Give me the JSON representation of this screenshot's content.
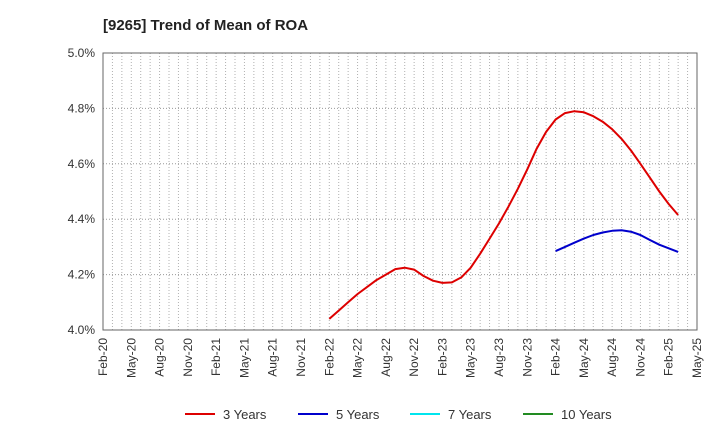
{
  "chart_data": {
    "type": "line",
    "title": "[9265]  Trend of Mean of ROA",
    "xlabel": "",
    "ylabel": "",
    "ylim": [
      4.0,
      5.0
    ],
    "y_ticks": [
      "4.0%",
      "4.2%",
      "4.4%",
      "4.6%",
      "4.8%",
      "5.0%"
    ],
    "y_tick_values": [
      4.0,
      4.2,
      4.4,
      4.6,
      4.8,
      5.0
    ],
    "x_range": [
      "2020-02",
      "2025-05"
    ],
    "x_ticks": [
      "Feb-20",
      "May-20",
      "Aug-20",
      "Nov-20",
      "Feb-21",
      "May-21",
      "Aug-21",
      "Nov-21",
      "Feb-22",
      "May-22",
      "Aug-22",
      "Nov-22",
      "Feb-23",
      "May-23",
      "Aug-23",
      "Nov-23",
      "Feb-24",
      "May-24",
      "Aug-24",
      "Nov-24",
      "Feb-25",
      "May-25"
    ],
    "grid": true,
    "legend_position": "bottom",
    "series": [
      {
        "name": "3 Years",
        "color": "#dd0000",
        "points": [
          [
            "2022-02",
            4.04
          ],
          [
            "2022-03",
            4.07
          ],
          [
            "2022-04",
            4.1
          ],
          [
            "2022-05",
            4.13
          ],
          [
            "2022-06",
            4.155
          ],
          [
            "2022-07",
            4.18
          ],
          [
            "2022-08",
            4.2
          ],
          [
            "2022-09",
            4.22
          ],
          [
            "2022-10",
            4.225
          ],
          [
            "2022-11",
            4.218
          ],
          [
            "2022-12",
            4.195
          ],
          [
            "2023-01",
            4.178
          ],
          [
            "2023-02",
            4.17
          ],
          [
            "2023-03",
            4.172
          ],
          [
            "2023-04",
            4.19
          ],
          [
            "2023-05",
            4.225
          ],
          [
            "2023-06",
            4.275
          ],
          [
            "2023-07",
            4.33
          ],
          [
            "2023-08",
            4.385
          ],
          [
            "2023-09",
            4.445
          ],
          [
            "2023-10",
            4.51
          ],
          [
            "2023-11",
            4.58
          ],
          [
            "2023-12",
            4.655
          ],
          [
            "2024-01",
            4.715
          ],
          [
            "2024-02",
            4.76
          ],
          [
            "2024-03",
            4.783
          ],
          [
            "2024-04",
            4.79
          ],
          [
            "2024-05",
            4.786
          ],
          [
            "2024-06",
            4.772
          ],
          [
            "2024-07",
            4.752
          ],
          [
            "2024-08",
            4.725
          ],
          [
            "2024-09",
            4.69
          ],
          [
            "2024-10",
            4.648
          ],
          [
            "2024-11",
            4.6
          ],
          [
            "2024-12",
            4.55
          ],
          [
            "2025-01",
            4.5
          ],
          [
            "2025-02",
            4.455
          ],
          [
            "2025-03",
            4.415
          ]
        ]
      },
      {
        "name": "5 Years",
        "color": "#0000cc",
        "points": [
          [
            "2024-02",
            4.285
          ],
          [
            "2024-03",
            4.3
          ],
          [
            "2024-04",
            4.315
          ],
          [
            "2024-05",
            4.33
          ],
          [
            "2024-06",
            4.343
          ],
          [
            "2024-07",
            4.352
          ],
          [
            "2024-08",
            4.358
          ],
          [
            "2024-09",
            4.36
          ],
          [
            "2024-10",
            4.355
          ],
          [
            "2024-11",
            4.343
          ],
          [
            "2024-12",
            4.325
          ],
          [
            "2025-01",
            4.308
          ],
          [
            "2025-02",
            4.295
          ],
          [
            "2025-03",
            4.282
          ]
        ]
      },
      {
        "name": "7 Years",
        "color": "#00e5ee",
        "points": []
      },
      {
        "name": "10 Years",
        "color": "#228b22",
        "points": []
      }
    ]
  }
}
